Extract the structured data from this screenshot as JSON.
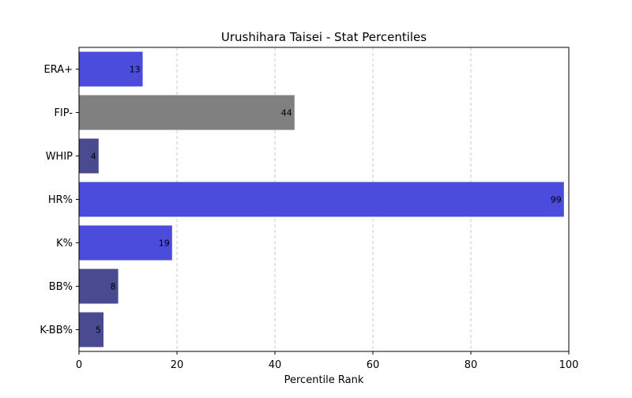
{
  "chart_data": {
    "type": "bar",
    "orientation": "horizontal",
    "title": "Urushihara Taisei - Stat Percentiles",
    "xlabel": "Percentile Rank",
    "ylabel": "",
    "xlim": [
      0,
      100
    ],
    "xticks": [
      "0",
      "20",
      "40",
      "60",
      "80",
      "100"
    ],
    "grid": "x-dashed",
    "categories": [
      "ERA+",
      "FIP-",
      "WHIP",
      "HR%",
      "K%",
      "BB%",
      "K-BB%"
    ],
    "values": [
      13,
      44,
      4,
      99,
      19,
      8,
      5
    ],
    "bar_colors": [
      "#4b4bdc",
      "#808080",
      "#4a4a91",
      "#4b4bdc",
      "#4b4bdc",
      "#4a4a91",
      "#4a4a91"
    ]
  }
}
